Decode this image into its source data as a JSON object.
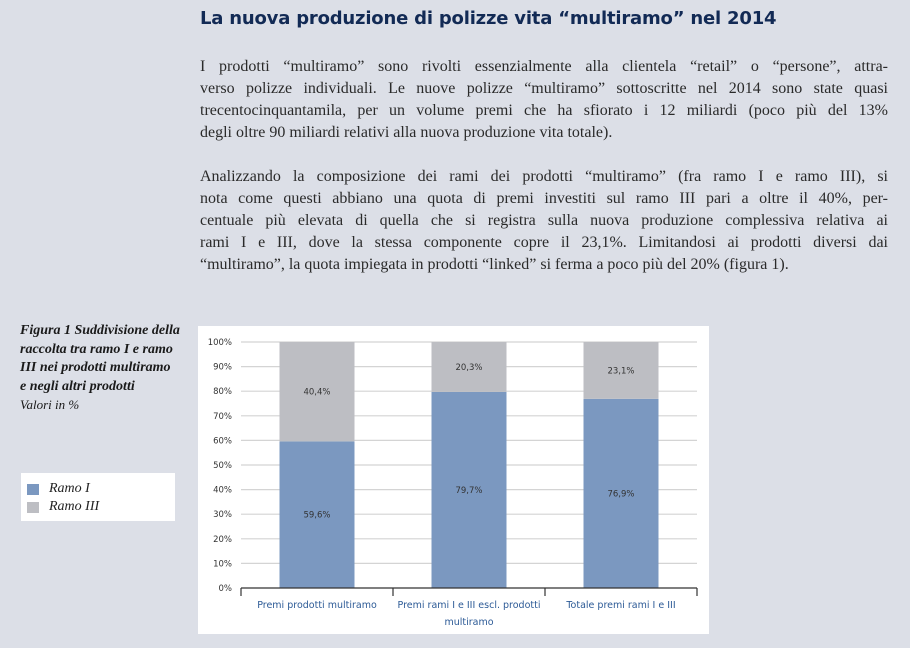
{
  "title": "La nuova produzione di polizze vita “multiramo” nel 2014",
  "paragraphs": [
    [
      "I prodotti “multiramo” sono rivolti essenzialmente alla clientela “retail” o “persone”, attra-",
      "verso polizze individuali. Le nuove polizze “multiramo” sottoscritte nel 2014 sono state quasi",
      "trecentocinquantamila, per un volume premi che ha sfiorato i 12 miliardi (poco più del 13%",
      "degli oltre 90 miliardi relativi alla nuova produzione vita totale)."
    ],
    [
      "Analizzando la composizione dei rami dei prodotti “multiramo” (fra ramo I e ramo III), si",
      "nota come questi abbiano una quota di premi investiti sul ramo III pari a oltre il 40%, per-",
      "centuale più elevata di quella che si registra sulla nuova produzione complessiva relativa ai",
      "rami I e III, dove la stessa componente copre il 23,1%. Limitandosi ai prodotti diversi dai",
      "“multiramo”, la quota impiegata in prodotti “linked” si ferma a poco più del 20% (figura 1)."
    ]
  ],
  "caption": {
    "title": "Figura 1 Suddivisione della raccolta tra ramo I e ramo III nei prodotti multiramo e negli altri prodotti",
    "subtitle": "Valori in %"
  },
  "legend": [
    {
      "label": "Ramo I",
      "color": "#7b98c0"
    },
    {
      "label": "Ramo III",
      "color": "#bdbec3"
    }
  ],
  "chart_data": {
    "type": "bar",
    "stacked": true,
    "categories": [
      [
        "Premi prodotti multiramo"
      ],
      [
        "Premi rami I e III escl. prodotti",
        "multiramo"
      ],
      [
        "Totale premi rami I e III"
      ]
    ],
    "series": [
      {
        "name": "Ramo I",
        "values": [
          59.6,
          79.7,
          76.9
        ],
        "labels": [
          "59,6%",
          "79,7%",
          "76,9%"
        ],
        "color": "#7b98c0"
      },
      {
        "name": "Ramo III",
        "values": [
          40.4,
          20.3,
          23.1
        ],
        "labels": [
          "40,4%",
          "20,3%",
          "23,1%"
        ],
        "color": "#bdbec3"
      }
    ],
    "yticks": [
      "0%",
      "10%",
      "20%",
      "30%",
      "40%",
      "50%",
      "60%",
      "70%",
      "80%",
      "90%",
      "100%"
    ],
    "ylim": [
      0,
      100
    ],
    "grid": true,
    "legend_position": "left"
  }
}
